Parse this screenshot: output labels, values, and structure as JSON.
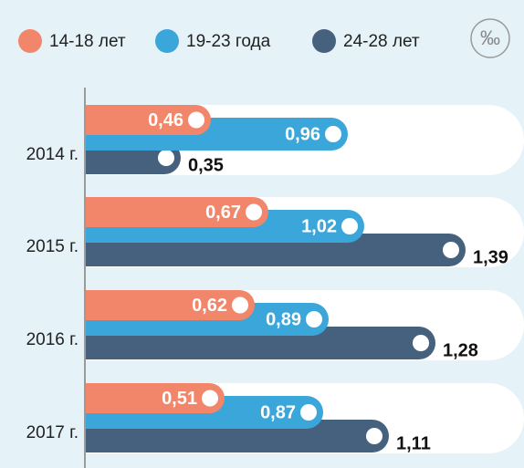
{
  "chart_data": {
    "type": "bar",
    "orientation": "horizontal",
    "unit": "‰",
    "categories": [
      "2014 г.",
      "2015 г.",
      "2016 г.",
      "2017 г."
    ],
    "xlim": [
      0,
      1.5
    ],
    "series": [
      {
        "name": "14-18 лет",
        "color": "#f2866a",
        "values": [
          0.46,
          0.67,
          0.62,
          0.51
        ],
        "value_labels": [
          "0,46",
          "0,67",
          "0,62",
          "0,51"
        ]
      },
      {
        "name": "19-23 года",
        "color": "#3ba6d9",
        "values": [
          0.96,
          1.02,
          0.89,
          0.87
        ],
        "value_labels": [
          "0,96",
          "1,02",
          "0,89",
          "0,87"
        ]
      },
      {
        "name": "24-28 лет",
        "color": "#46617e",
        "values": [
          0.35,
          1.39,
          1.28,
          1.11
        ],
        "value_labels": [
          "0,35",
          "1,39",
          "1,28",
          "1,11"
        ]
      }
    ]
  }
}
